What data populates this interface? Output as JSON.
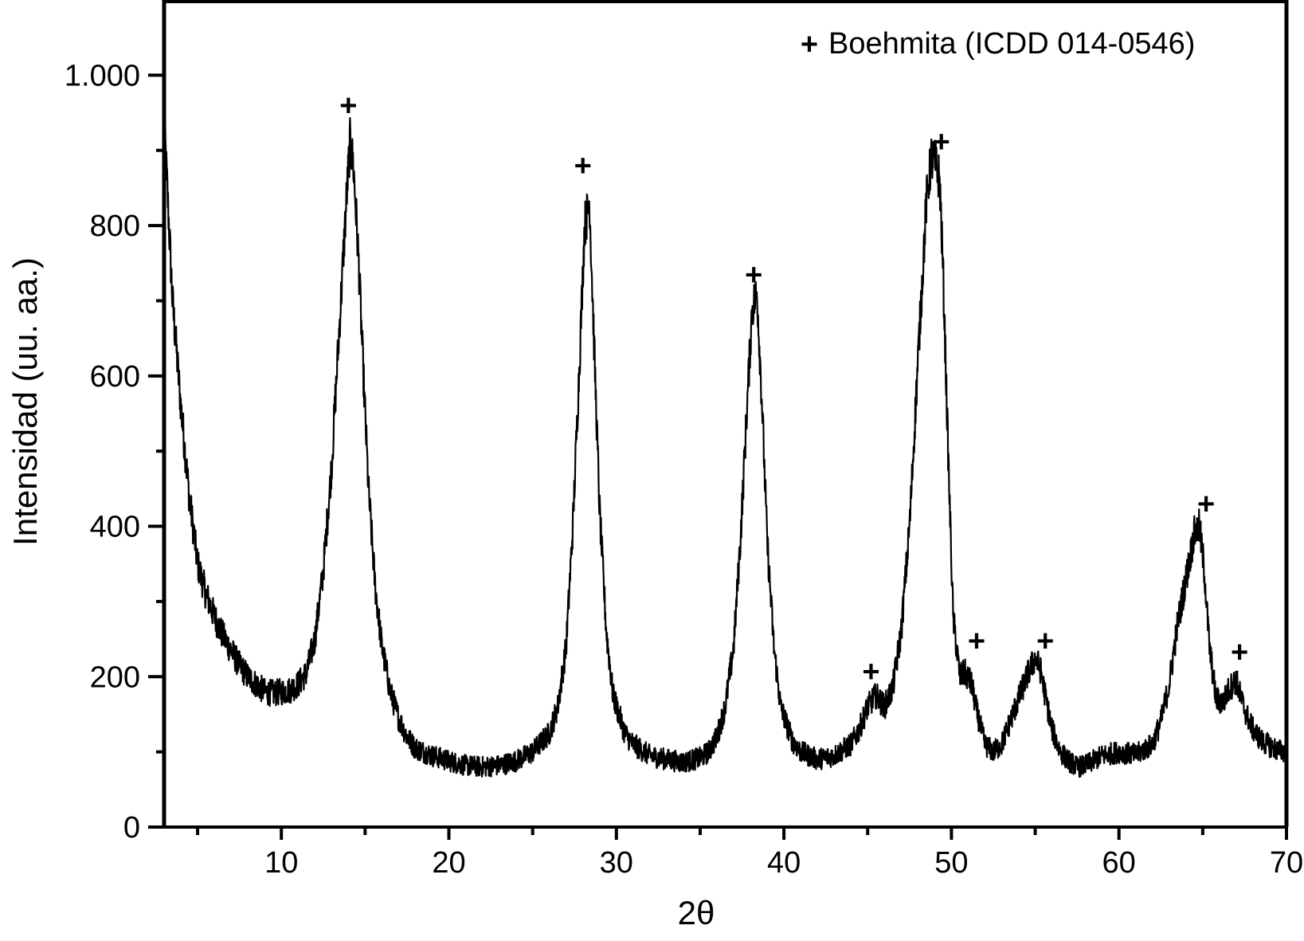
{
  "chart_data": {
    "type": "line",
    "title": "",
    "xlabel": "2θ",
    "ylabel": "Intensidad (uu. aa.)",
    "xlim": [
      3,
      70
    ],
    "ylim": [
      0,
      1100
    ],
    "x_ticks": [
      10,
      20,
      30,
      40,
      50,
      60,
      70
    ],
    "x_tick_labels": [
      "10",
      "20",
      "30",
      "40",
      "50",
      "60",
      "70"
    ],
    "x_minor_ticks": [
      5,
      15,
      25,
      35,
      45,
      55,
      65
    ],
    "y_ticks": [
      0,
      200,
      400,
      600,
      800,
      1000
    ],
    "y_tick_labels": [
      "0",
      "200",
      "400",
      "600",
      "800",
      "1.000"
    ],
    "y_minor_ticks": [
      100,
      300,
      500,
      700,
      900
    ],
    "grid": false,
    "legend": {
      "position": "top-right",
      "marker": "+",
      "text": "Boehmita (ICDD 014-0546)"
    },
    "series": [
      {
        "name": "",
        "color": "#000000",
        "x": [
          3.0,
          3.5,
          4.0,
          4.5,
          5.0,
          5.5,
          6.0,
          6.5,
          7.0,
          7.5,
          8.0,
          8.5,
          9.0,
          9.5,
          10.0,
          10.5,
          11.0,
          11.5,
          12.0,
          12.5,
          13.0,
          13.3,
          13.6,
          13.9,
          14.1,
          14.3,
          14.6,
          14.9,
          15.2,
          15.6,
          16.0,
          16.5,
          17.0,
          17.5,
          18.0,
          19.0,
          20.0,
          21.0,
          22.0,
          23.0,
          24.0,
          25.0,
          26.0,
          26.5,
          27.0,
          27.4,
          27.8,
          28.1,
          28.4,
          28.7,
          29.0,
          29.4,
          29.8,
          30.5,
          31.0,
          32.0,
          33.0,
          34.0,
          35.0,
          35.5,
          36.0,
          36.5,
          37.0,
          37.4,
          37.8,
          38.1,
          38.4,
          38.7,
          39.0,
          39.4,
          39.8,
          40.5,
          41.0,
          42.0,
          43.0,
          44.0,
          44.5,
          45.0,
          45.5,
          46.0,
          46.5,
          47.0,
          47.5,
          48.0,
          48.5,
          48.8,
          49.1,
          49.3,
          49.5,
          49.8,
          50.1,
          50.5,
          50.8,
          51.2,
          51.5,
          52.0,
          52.5,
          53.0,
          53.5,
          54.0,
          54.5,
          55.0,
          55.3,
          55.6,
          56.0,
          56.5,
          57.0,
          57.5,
          58.0,
          59.0,
          60.0,
          61.0,
          62.0,
          62.5,
          63.0,
          63.5,
          64.0,
          64.5,
          64.8,
          65.1,
          65.4,
          65.8,
          66.2,
          66.6,
          67.0,
          67.3,
          67.6,
          68.0,
          68.5,
          69.0,
          69.5,
          70.0
        ],
        "y": [
          940,
          700,
          560,
          440,
          350,
          310,
          280,
          255,
          235,
          215,
          200,
          190,
          180,
          178,
          180,
          182,
          190,
          205,
          250,
          340,
          480,
          600,
          720,
          840,
          910,
          880,
          760,
          600,
          450,
          320,
          240,
          180,
          145,
          120,
          105,
          95,
          88,
          82,
          80,
          82,
          88,
          100,
          125,
          160,
          240,
          400,
          620,
          800,
          830,
          620,
          420,
          260,
          175,
          125,
          110,
          95,
          90,
          86,
          92,
          100,
          120,
          160,
          240,
          380,
          560,
          690,
          710,
          560,
          380,
          240,
          160,
          115,
          100,
          90,
          95,
          110,
          130,
          160,
          175,
          160,
          185,
          260,
          400,
          620,
          830,
          890,
          880,
          860,
          740,
          500,
          280,
          200,
          205,
          190,
          155,
          110,
          100,
          110,
          140,
          170,
          200,
          225,
          210,
          175,
          130,
          100,
          88,
          80,
          82,
          95,
          100,
          96,
          110,
          140,
          190,
          270,
          330,
          390,
          400,
          340,
          240,
          170,
          165,
          185,
          195,
          170,
          150,
          130,
          115,
          108,
          102,
          100
        ]
      }
    ],
    "annotations": {
      "marker": "+",
      "points": [
        {
          "x": 14.0,
          "y": 960
        },
        {
          "x": 28.0,
          "y": 880
        },
        {
          "x": 38.2,
          "y": 735
        },
        {
          "x": 45.2,
          "y": 207
        },
        {
          "x": 49.4,
          "y": 912
        },
        {
          "x": 51.5,
          "y": 248
        },
        {
          "x": 55.6,
          "y": 248
        },
        {
          "x": 65.2,
          "y": 430
        },
        {
          "x": 67.2,
          "y": 233
        }
      ]
    }
  }
}
